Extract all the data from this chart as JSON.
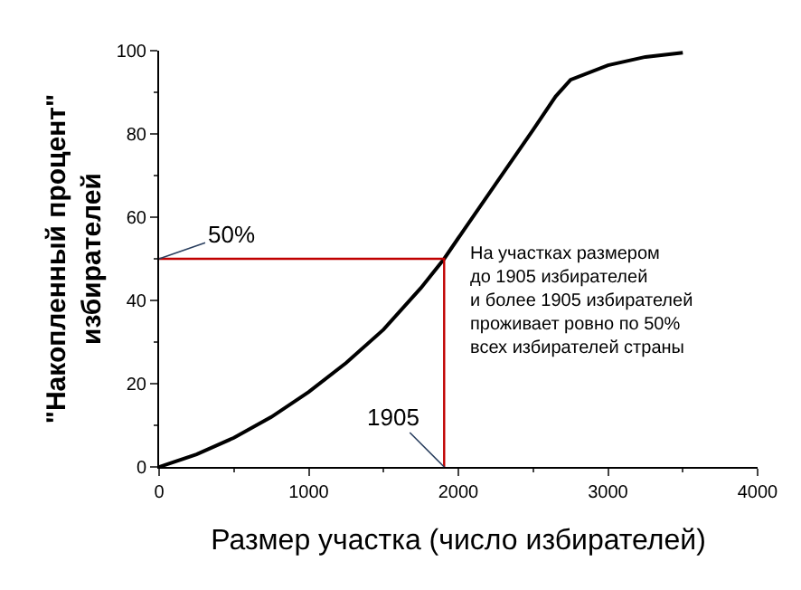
{
  "chart_data": {
    "type": "line",
    "xlabel": "Размер участка (число избирателей)",
    "ylabel": "\"Накопленный процент\"\nизбирателей",
    "xlim": [
      0,
      4000
    ],
    "xticks": [
      0,
      1000,
      2000,
      3000,
      4000
    ],
    "ylim": [
      0,
      100
    ],
    "yticks": [
      0,
      20,
      40,
      60,
      80,
      100
    ],
    "marker": "none",
    "line_style": "solid",
    "series": [
      {
        "color": "#000000",
        "x": [
          0,
          250,
          500,
          750,
          1000,
          1250,
          1500,
          1750,
          1905,
          2000,
          2250,
          2500,
          2650,
          2750,
          3000,
          3250,
          3500
        ],
        "values": [
          0,
          3,
          7,
          12,
          18,
          25,
          33,
          43,
          50,
          55,
          68,
          81,
          89,
          93,
          96.5,
          98.5,
          99.5
        ]
      },
      {
        "color": "#c00000",
        "x": [
          0,
          1905,
          1905
        ],
        "values": [
          50,
          50,
          0
        ]
      }
    ],
    "annotations": [
      {
        "text": "50%",
        "x": 0,
        "y": 50
      },
      {
        "text": "1905",
        "x": 1905,
        "y": 0
      },
      "На участках размером\nдо 1905 избирателей\nи более 1905 избирателей\nпроживает ровно по 50%\nвсех избирателей страны"
    ]
  }
}
